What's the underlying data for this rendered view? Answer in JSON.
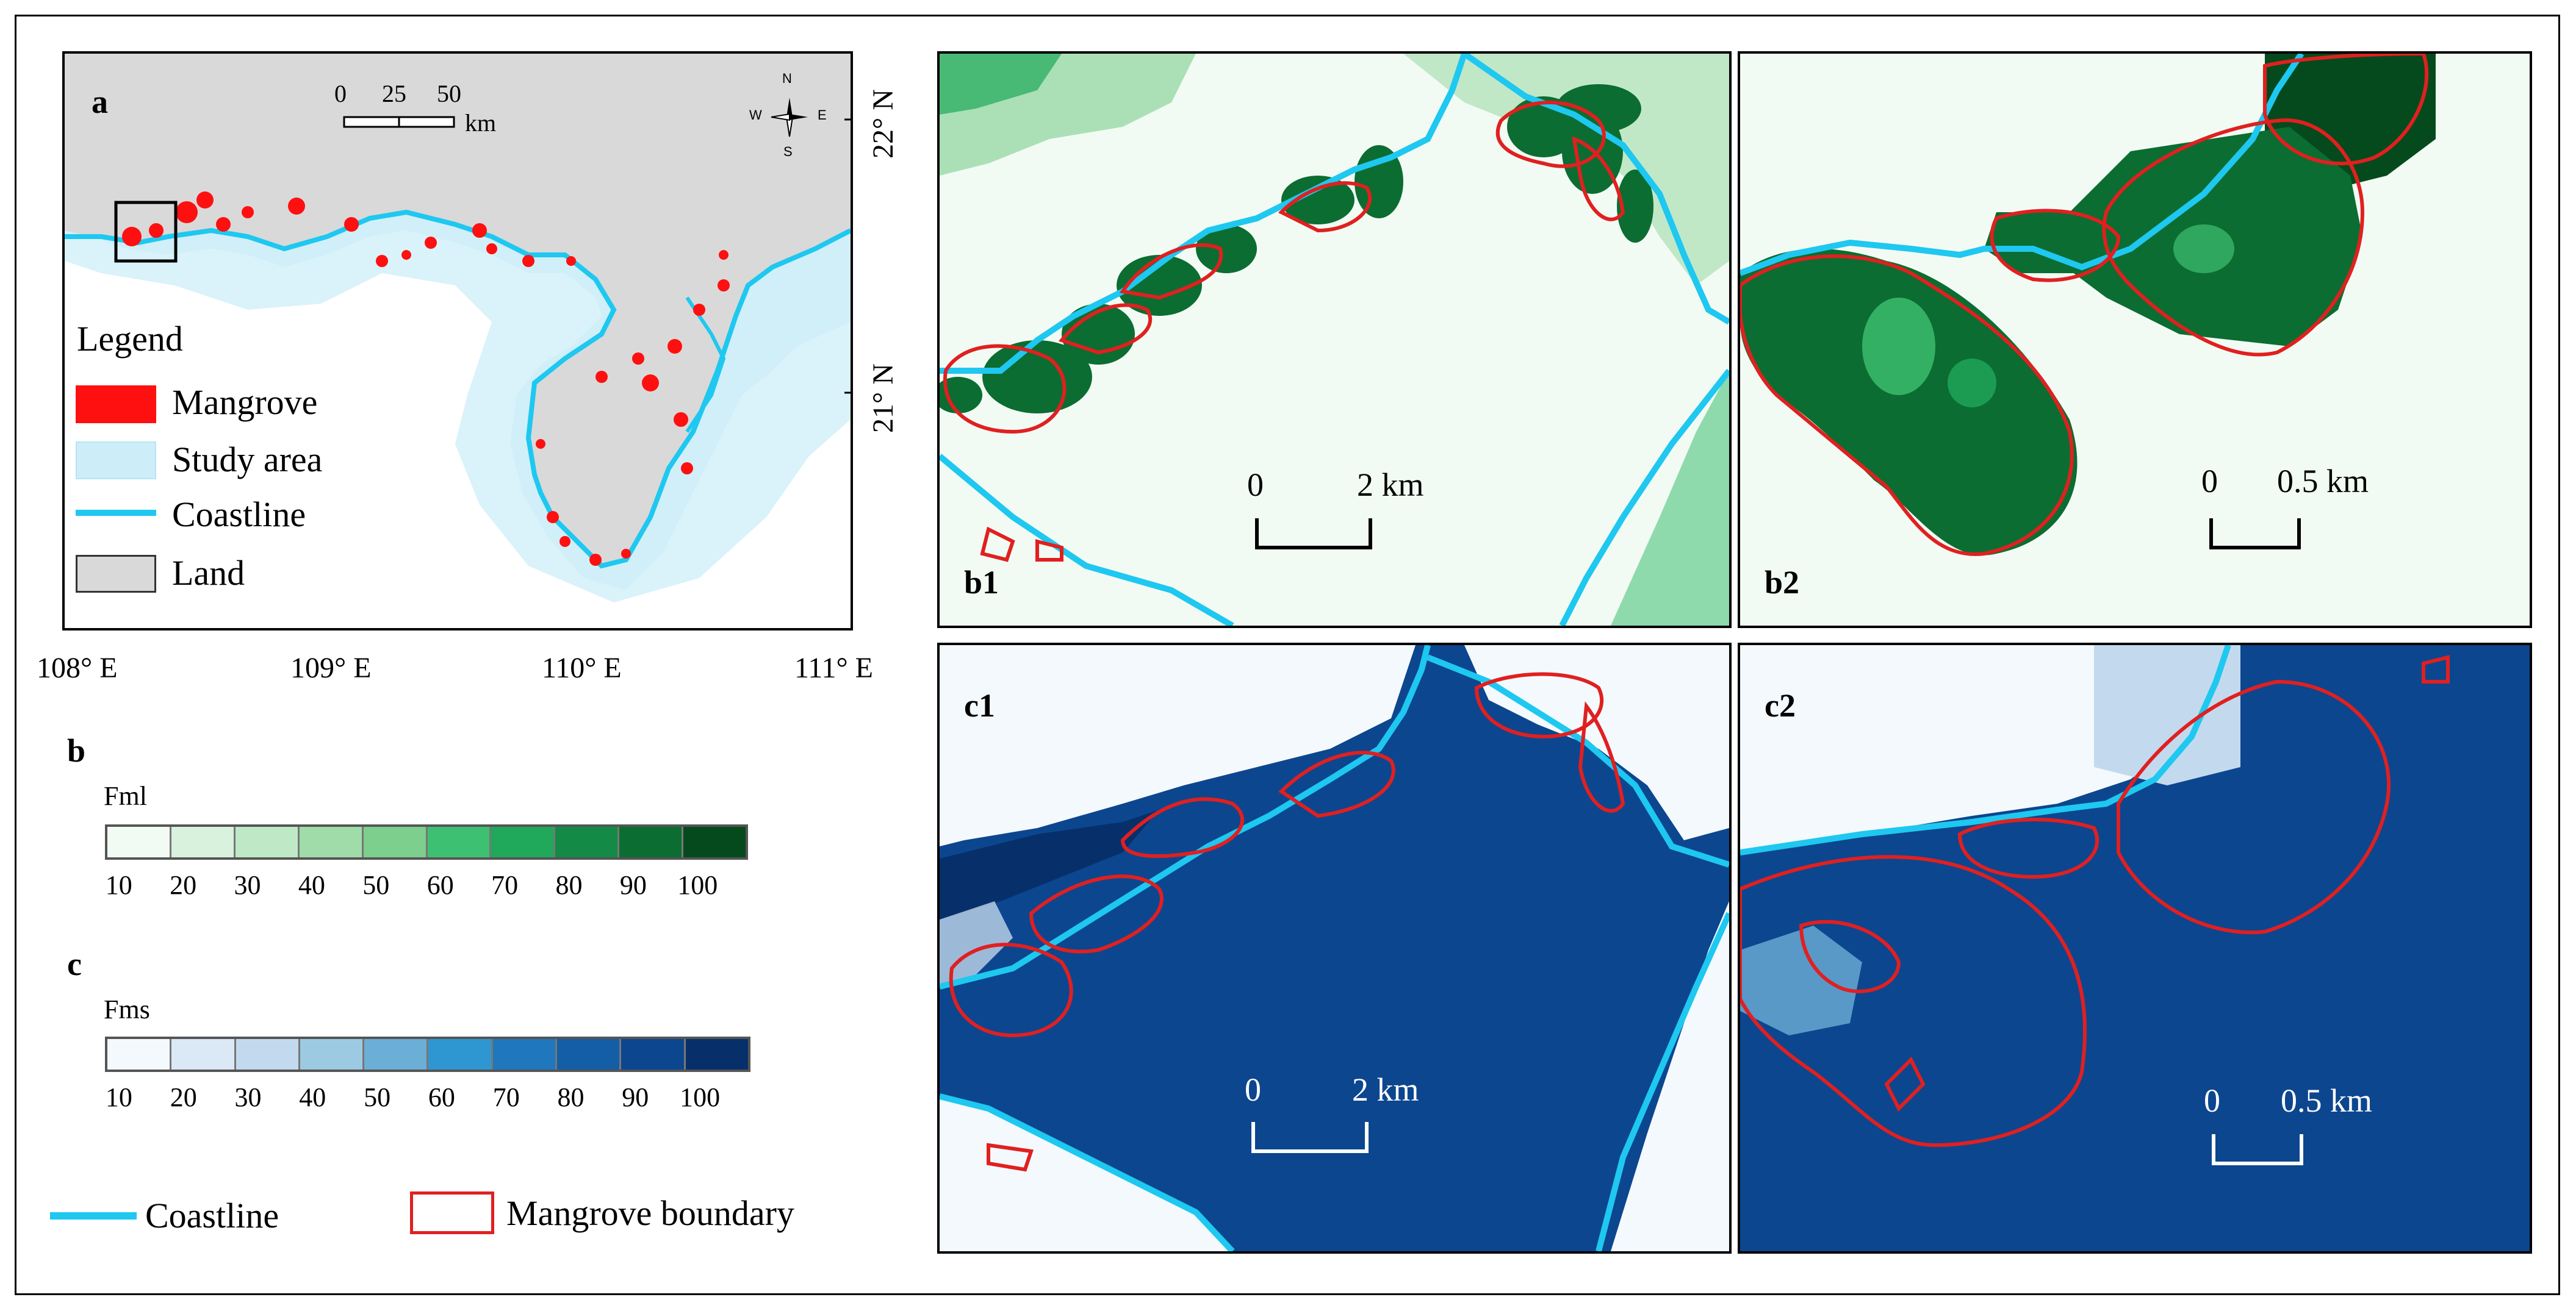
{
  "panels": {
    "a": {
      "label": "a"
    },
    "b1": {
      "label": "b1",
      "scale_zero": "0",
      "scale_end": "2 km"
    },
    "b2": {
      "label": "b2",
      "scale_zero": "0",
      "scale_end": "0.5 km"
    },
    "c1": {
      "label": "c1",
      "scale_zero": "0",
      "scale_end": "2 km"
    },
    "c2": {
      "label": "c2",
      "scale_zero": "0",
      "scale_end": "0.5 km"
    }
  },
  "map_a": {
    "scale_ticks": [
      "0",
      "25",
      "50"
    ],
    "scale_unit": "km",
    "compass": {
      "n": "N",
      "s": "S",
      "e": "E",
      "w": "W"
    },
    "lat_labels": [
      "22° N",
      "21° N"
    ],
    "lon_labels": [
      "108° E",
      "109° E",
      "110° E",
      "111° E"
    ]
  },
  "legend": {
    "title": "Legend",
    "items": [
      {
        "label": "Mangrove",
        "color": "#ff1010"
      },
      {
        "label": "Study area",
        "color": "#cdeef8"
      },
      {
        "label": "Coastline",
        "color": "#1ec8f0"
      },
      {
        "label": "Land",
        "color": "#d9d9d9"
      }
    ]
  },
  "colorbar_b": {
    "section_label": "b",
    "title": "Fml",
    "ticks": [
      "10",
      "20",
      "30",
      "40",
      "50",
      "60",
      "70",
      "80",
      "90",
      "100"
    ],
    "colors": [
      "#f2fbf3",
      "#d8f2dd",
      "#bfe8c6",
      "#9fdcaa",
      "#7ccf8d",
      "#3ec073",
      "#20a85b",
      "#138a45",
      "#0b6d31",
      "#054a1c"
    ]
  },
  "colorbar_c": {
    "section_label": "c",
    "title": "Fms",
    "ticks": [
      "10",
      "20",
      "30",
      "40",
      "50",
      "60",
      "70",
      "80",
      "90",
      "100"
    ],
    "colors": [
      "#f4f9fd",
      "#dbe9f6",
      "#c3daee",
      "#9ccae3",
      "#6baed6",
      "#2e97d2",
      "#1f77bd",
      "#135ea6",
      "#0c468f",
      "#07306b"
    ]
  },
  "bottom_legend": {
    "coastline_label": "Coastline",
    "boundary_label": "Mangrove boundary",
    "coastline_color": "#1ec8f0",
    "boundary_color": "#e02020"
  }
}
